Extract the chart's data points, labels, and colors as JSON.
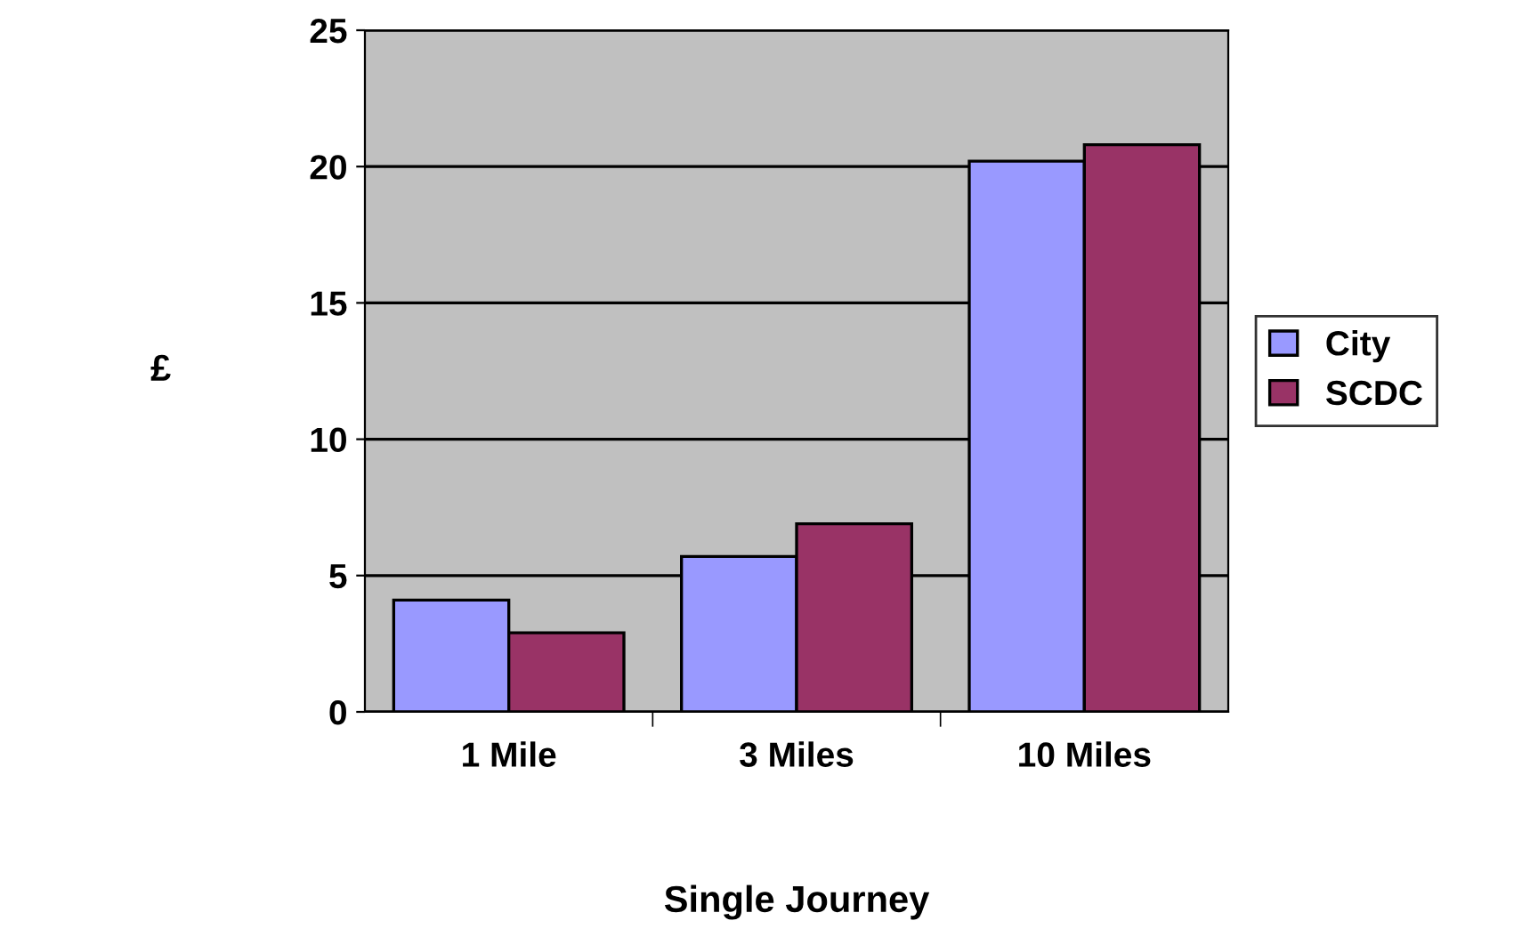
{
  "chart_data": {
    "type": "bar",
    "xlabel": "Single Journey",
    "ylabel": "£",
    "categories": [
      "1 Mile",
      "3 Miles",
      "10 Miles"
    ],
    "series": [
      {
        "name": "City",
        "color": "#9999ff",
        "values": [
          4.1,
          5.7,
          20.2
        ]
      },
      {
        "name": "SCDC",
        "color": "#993366",
        "values": [
          2.9,
          6.9,
          20.8
        ]
      }
    ],
    "ylim": [
      0,
      25
    ],
    "yticks": [
      0,
      5,
      10,
      15,
      20,
      25
    ],
    "grid": "y",
    "legend": "right"
  }
}
